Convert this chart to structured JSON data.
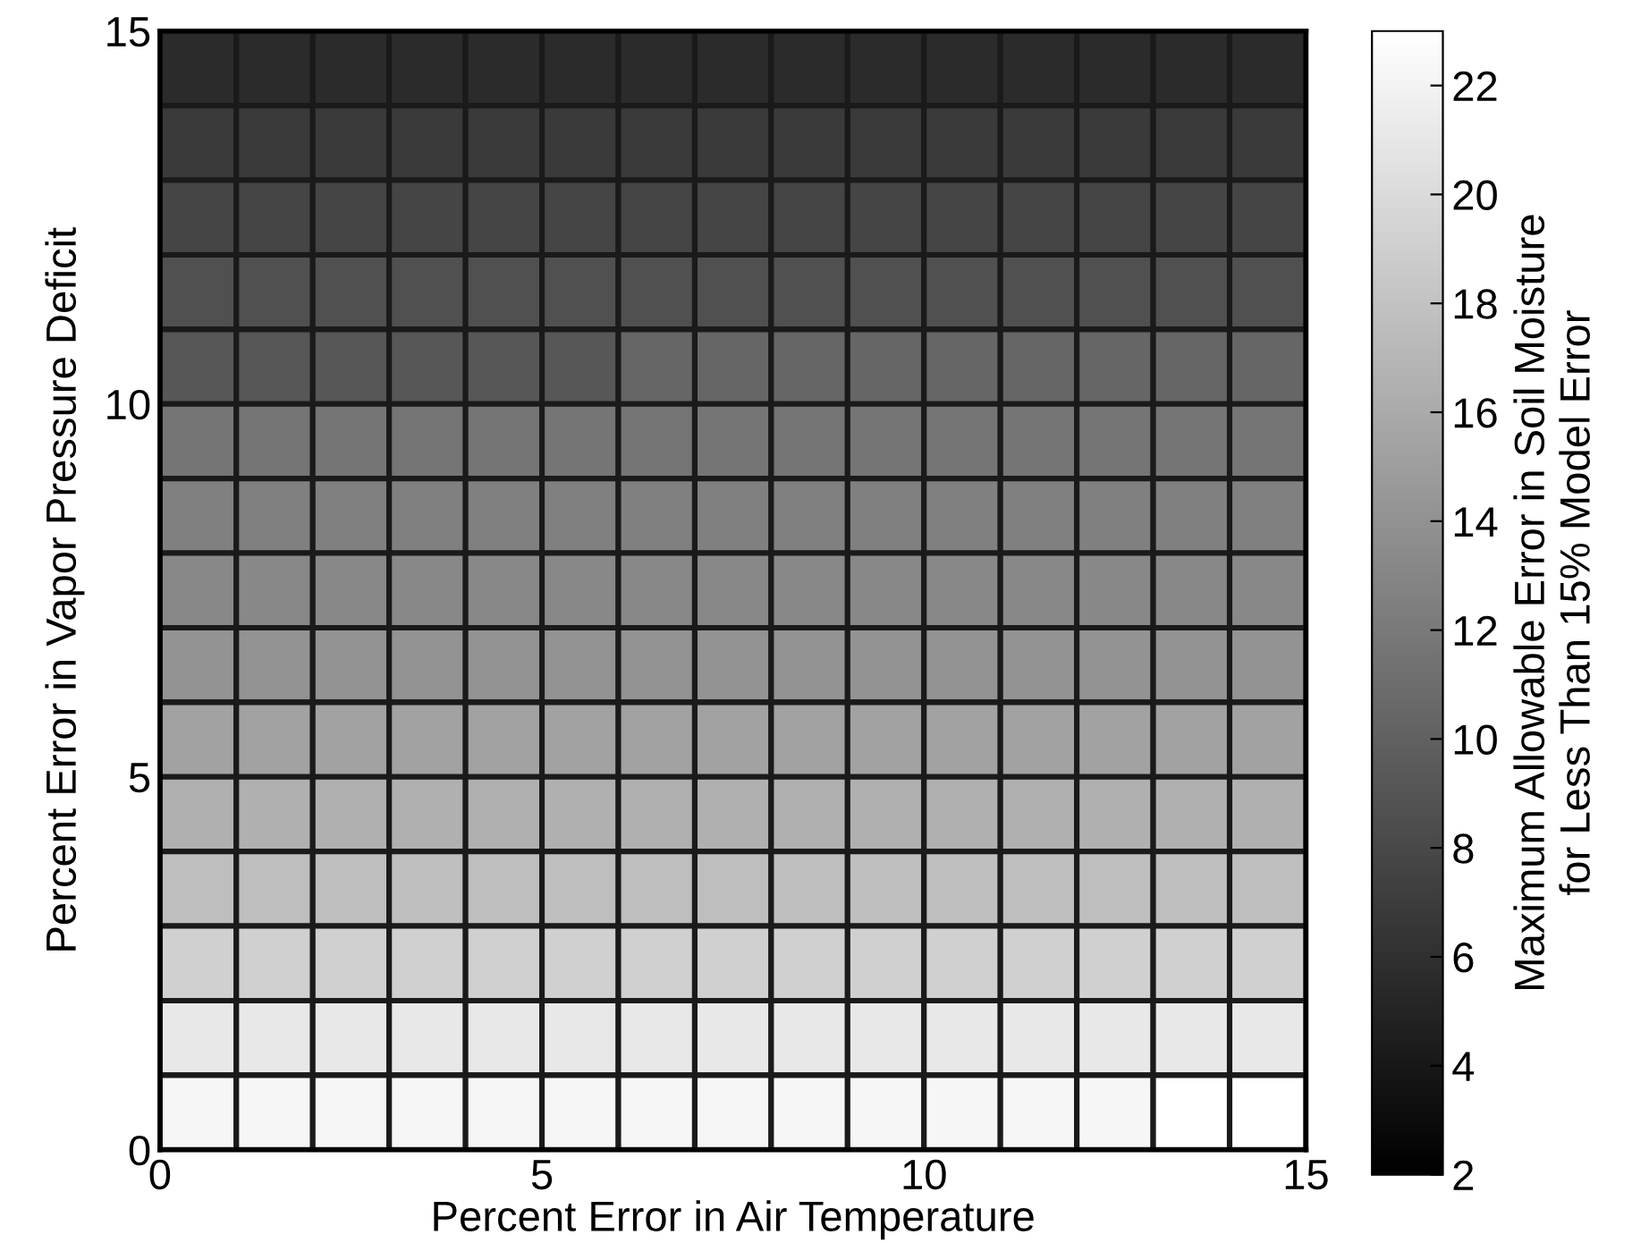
{
  "chart_data": {
    "type": "heatmap",
    "xlabel": "Percent Error in Air Temperature",
    "ylabel": "Percent Error in Vapor Pressure Deficit",
    "clabel": "Maximum Allowable Error in Soil Moisture\nfor Less Than 15% Model Error",
    "xlim": [
      0,
      15
    ],
    "ylim": [
      0,
      15
    ],
    "xticks": [
      0,
      5,
      10,
      15
    ],
    "yticks": [
      0,
      5,
      10,
      15
    ],
    "cells": [
      [
        5.6,
        5.6,
        5.6,
        5.6,
        5.6,
        5.6,
        5.6,
        5.6,
        5.6,
        5.6,
        5.6,
        5.6,
        5.6,
        5.6,
        5.6
      ],
      [
        6.8,
        6.8,
        6.8,
        6.8,
        6.8,
        6.8,
        6.8,
        6.8,
        6.8,
        6.8,
        6.8,
        6.8,
        6.8,
        6.8,
        6.8
      ],
      [
        7.7,
        7.7,
        7.7,
        7.7,
        7.7,
        7.7,
        7.7,
        7.7,
        7.7,
        7.7,
        7.7,
        7.7,
        7.7,
        7.7,
        7.7
      ],
      [
        8.6,
        8.6,
        8.6,
        8.6,
        8.6,
        8.6,
        8.6,
        8.6,
        8.6,
        8.6,
        8.6,
        8.6,
        8.6,
        8.6,
        8.6
      ],
      [
        9.2,
        9.2,
        9.2,
        9.2,
        9.2,
        9.2,
        10.4,
        10.4,
        10.4,
        10.4,
        10.4,
        10.4,
        10.4,
        10.4,
        10.4
      ],
      [
        11.6,
        11.6,
        11.6,
        11.6,
        11.6,
        11.6,
        11.6,
        11.6,
        11.6,
        11.6,
        11.6,
        11.6,
        11.6,
        11.6,
        11.6
      ],
      [
        12.5,
        12.5,
        12.5,
        12.5,
        12.5,
        12.5,
        12.5,
        12.5,
        12.5,
        12.5,
        12.5,
        12.5,
        12.5,
        12.5,
        12.5
      ],
      [
        13.2,
        13.2,
        13.2,
        13.2,
        13.2,
        13.2,
        13.2,
        13.2,
        13.2,
        13.2,
        13.2,
        13.2,
        13.2,
        13.2,
        13.2
      ],
      [
        14.1,
        14.1,
        14.1,
        14.1,
        14.1,
        14.1,
        14.1,
        14.1,
        14.1,
        14.1,
        14.1,
        14.1,
        14.1,
        14.1,
        14.1
      ],
      [
        15.3,
        15.3,
        15.3,
        15.3,
        15.3,
        15.3,
        15.3,
        15.3,
        15.3,
        15.3,
        15.3,
        15.3,
        15.3,
        15.3,
        15.3
      ],
      [
        16.5,
        16.5,
        16.5,
        16.5,
        16.5,
        16.5,
        16.5,
        16.5,
        16.5,
        16.5,
        16.5,
        16.5,
        16.5,
        16.5,
        16.5
      ],
      [
        17.6,
        17.6,
        17.6,
        17.6,
        17.6,
        17.6,
        17.6,
        17.6,
        17.6,
        17.6,
        17.6,
        17.6,
        17.6,
        17.6,
        17.6
      ],
      [
        19.1,
        19.1,
        19.1,
        19.1,
        19.1,
        19.1,
        19.1,
        19.1,
        19.1,
        19.1,
        19.1,
        19.1,
        19.1,
        19.1,
        19.1
      ],
      [
        21.1,
        21.1,
        21.1,
        21.1,
        21.1,
        21.1,
        21.1,
        21.1,
        21.1,
        21.1,
        21.1,
        21.1,
        21.1,
        21.1,
        21.1
      ],
      [
        22.2,
        22.2,
        22.2,
        22.2,
        22.2,
        22.2,
        22.2,
        22.2,
        22.2,
        22.2,
        22.2,
        22.2,
        22.2,
        23,
        23
      ]
    ],
    "clim": [
      2,
      23
    ],
    "cticks": [
      2,
      4,
      6,
      8,
      10,
      12,
      14,
      16,
      18,
      20,
      22
    ]
  }
}
